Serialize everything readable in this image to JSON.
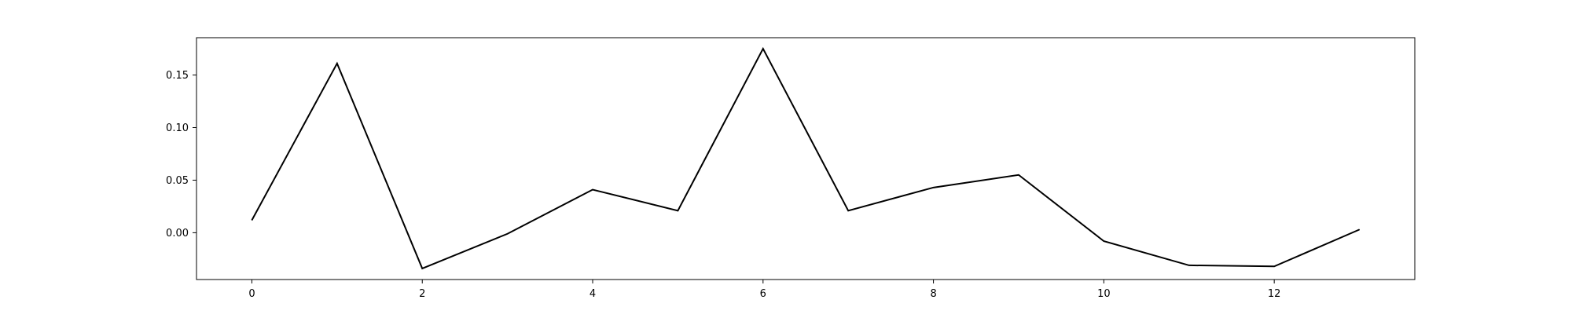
{
  "chart_data": {
    "type": "line",
    "title": "",
    "xlabel": "",
    "ylabel": "",
    "x": [
      0,
      1,
      2,
      3,
      4,
      5,
      6,
      7,
      8,
      9,
      10,
      11,
      12,
      13
    ],
    "series": [
      {
        "values": [
          0.012,
          0.161,
          -0.034,
          -0.001,
          0.041,
          0.021,
          0.175,
          0.021,
          0.043,
          0.055,
          -0.008,
          -0.031,
          -0.032,
          0.003
        ],
        "color": "#000000"
      }
    ],
    "xlim": [
      -0.65,
      13.65
    ],
    "ylim": [
      -0.0445,
      0.1855
    ],
    "xticks": [
      0,
      2,
      4,
      6,
      8,
      10,
      12
    ],
    "xtick_labels": [
      "0",
      "2",
      "4",
      "6",
      "8",
      "10",
      "12"
    ],
    "yticks": [
      0.0,
      0.05,
      0.1,
      0.15
    ],
    "ytick_labels": [
      "0.00",
      "0.05",
      "0.10",
      "0.15"
    ],
    "grid": false,
    "legend": "none"
  }
}
